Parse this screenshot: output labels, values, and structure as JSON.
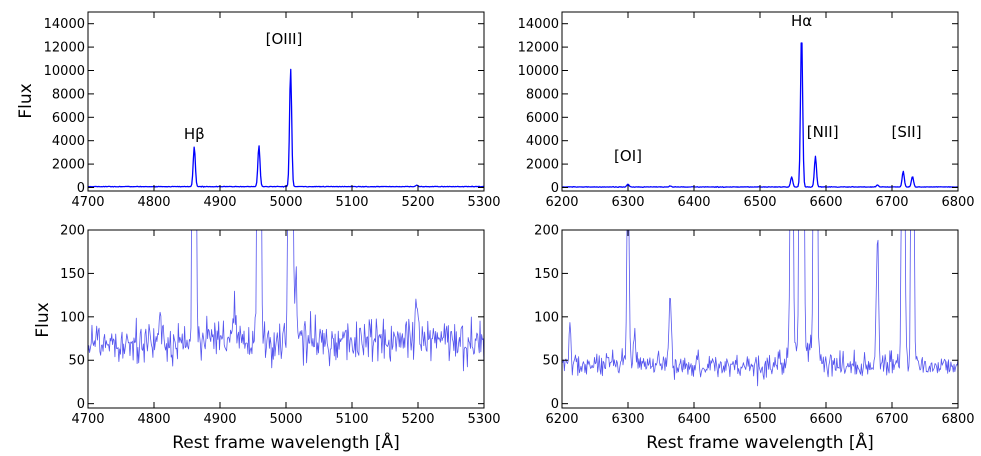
{
  "figure": {
    "xlabel_bottom": "Rest frame wavelength [Å]",
    "ylabel": "Flux"
  },
  "chart_data": [
    {
      "type": "line",
      "panel": "top-left",
      "xlim": [
        4700,
        5300
      ],
      "ylim": [
        -300,
        15000
      ],
      "xticks": [
        4700,
        4800,
        4900,
        5000,
        5100,
        5200,
        5300
      ],
      "yticks": [
        0,
        2000,
        4000,
        6000,
        8000,
        10000,
        12000,
        14000
      ],
      "ylabel": "Flux",
      "xlabel": "",
      "color": "#0000ff",
      "continuum": 75,
      "lines": [
        {
          "x": 4861,
          "peak": 3400,
          "sigma": 1.6
        },
        {
          "x": 4959,
          "peak": 3500,
          "sigma": 1.6
        },
        {
          "x": 5007,
          "peak": 10100,
          "sigma": 1.6
        },
        {
          "x": 5198,
          "peak": 120,
          "sigma": 1.6
        }
      ],
      "annotations": [
        {
          "text": "Hβ",
          "x": 4861,
          "y": 4150
        },
        {
          "text": "[OIII]",
          "x": 4997,
          "y": 12250
        }
      ]
    },
    {
      "type": "line",
      "panel": "top-right",
      "xlim": [
        6200,
        6800
      ],
      "ylim": [
        -300,
        15000
      ],
      "xticks": [
        6200,
        6300,
        6400,
        6500,
        6600,
        6700,
        6800
      ],
      "yticks": [
        0,
        2000,
        4000,
        6000,
        8000,
        10000,
        12000,
        14000
      ],
      "ylabel": "",
      "xlabel": "",
      "color": "#0000ff",
      "continuum": 45,
      "lines": [
        {
          "x": 6300,
          "peak": 250,
          "sigma": 1.6
        },
        {
          "x": 6364,
          "peak": 90,
          "sigma": 1.6
        },
        {
          "x": 6548,
          "peak": 850,
          "sigma": 1.6
        },
        {
          "x": 6563,
          "peak": 13200,
          "sigma": 1.6
        },
        {
          "x": 6584,
          "peak": 2600,
          "sigma": 1.6
        },
        {
          "x": 6678,
          "peak": 180,
          "sigma": 1.6
        },
        {
          "x": 6717,
          "peak": 1350,
          "sigma": 1.6
        },
        {
          "x": 6731,
          "peak": 900,
          "sigma": 1.6
        }
      ],
      "annotations": [
        {
          "text": "Hα",
          "x": 6563,
          "y": 13800
        },
        {
          "text": "[OI]",
          "x": 6300,
          "y": 2250
        },
        {
          "text": "[NII]",
          "x": 6595,
          "y": 4300
        },
        {
          "text": "[SII]",
          "x": 6722,
          "y": 4300
        }
      ]
    },
    {
      "type": "line",
      "panel": "bottom-left",
      "xlim": [
        4700,
        5300
      ],
      "ylim": [
        -5,
        200
      ],
      "xticks": [
        4700,
        4800,
        4900,
        5000,
        5100,
        5200,
        5300
      ],
      "yticks": [
        0,
        50,
        100,
        150,
        200
      ],
      "ylabel": "Flux",
      "xlabel": "Rest frame wavelength [Å]",
      "color": "#5555ee",
      "continuum": 72,
      "noise": 13,
      "lines": [
        {
          "x": 4861,
          "peak": 3400,
          "sigma": 1.6
        },
        {
          "x": 4922,
          "peak": 35,
          "sigma": 1.6
        },
        {
          "x": 4959,
          "peak": 3500,
          "sigma": 1.6
        },
        {
          "x": 5007,
          "peak": 10100,
          "sigma": 1.6
        },
        {
          "x": 5015,
          "peak": 80,
          "sigma": 1.6
        },
        {
          "x": 5198,
          "peak": 55,
          "sigma": 1.6
        }
      ]
    },
    {
      "type": "line",
      "panel": "bottom-right",
      "xlim": [
        6200,
        6800
      ],
      "ylim": [
        -5,
        200
      ],
      "xticks": [
        6200,
        6300,
        6400,
        6500,
        6600,
        6700,
        6800
      ],
      "yticks": [
        0,
        50,
        100,
        150,
        200
      ],
      "ylabel": "",
      "xlabel": "Rest frame wavelength [Å]",
      "color": "#5555ee",
      "continuum": 44,
      "noise": 7,
      "lines": [
        {
          "x": 6212,
          "peak": 50,
          "sigma": 1.4
        },
        {
          "x": 6300,
          "peak": 250,
          "sigma": 1.6
        },
        {
          "x": 6310,
          "peak": 45,
          "sigma": 1.4
        },
        {
          "x": 6364,
          "peak": 80,
          "sigma": 1.6
        },
        {
          "x": 6548,
          "peak": 850,
          "sigma": 1.6
        },
        {
          "x": 6563,
          "peak": 13200,
          "sigma": 1.6
        },
        {
          "x": 6584,
          "peak": 2600,
          "sigma": 1.6
        },
        {
          "x": 6678,
          "peak": 150,
          "sigma": 1.6
        },
        {
          "x": 6717,
          "peak": 1350,
          "sigma": 1.6
        },
        {
          "x": 6731,
          "peak": 900,
          "sigma": 1.6
        }
      ],
      "broad": {
        "x": 6563,
        "height": 25,
        "sigma": 15
      }
    }
  ]
}
